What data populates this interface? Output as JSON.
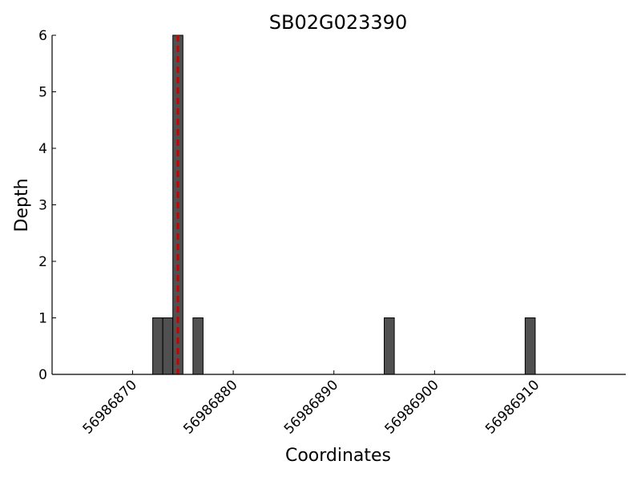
{
  "chart_data": {
    "type": "bar",
    "title": "SB02G023390",
    "x_label": "Coordinates",
    "y_label": "Depth",
    "x": [
      56986872,
      56986873,
      56986874,
      56986876,
      56986895,
      56986909
    ],
    "values": [
      1,
      1,
      6,
      1,
      1,
      1
    ],
    "color": "#505050",
    "marker_x": 56986874.5,
    "marker_color": "#cc0000",
    "xlim": [
      56986862,
      56986919
    ],
    "xticks": [
      56986870,
      56986880,
      56986890,
      56986900,
      56986910
    ],
    "ylim": [
      0,
      6
    ],
    "yticks": [
      0,
      1,
      2,
      3,
      4,
      5,
      6
    ]
  }
}
